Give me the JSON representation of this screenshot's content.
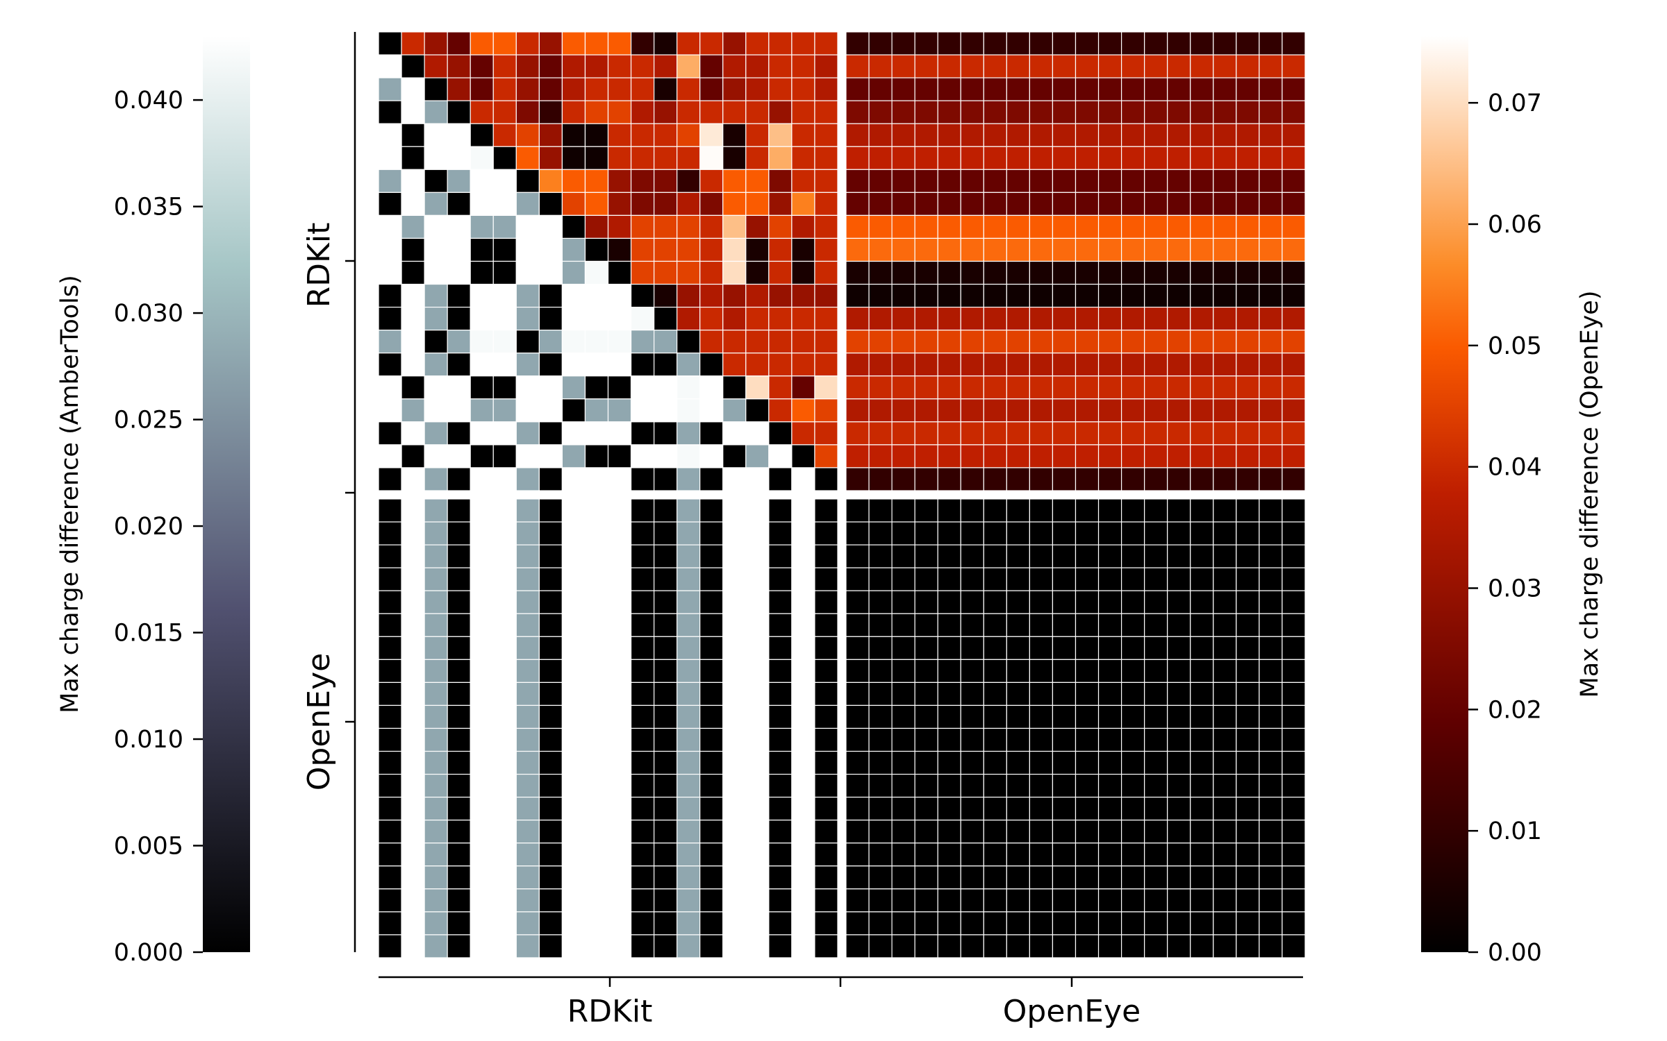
{
  "chart_data": {
    "type": "heatmap",
    "groups": [
      "RDKit",
      "OpenEye"
    ],
    "group_sizes": [
      20,
      20
    ],
    "x_group_labels": [
      "RDKit",
      "OpenEye"
    ],
    "y_group_labels": [
      "RDKit",
      "OpenEye"
    ],
    "left_colorbar": {
      "label": "Max charge difference (AmberTools)",
      "colormap": "bone",
      "range": [
        0.0,
        0.043
      ],
      "ticks": [
        "0.000",
        "0.005",
        "0.010",
        "0.015",
        "0.020",
        "0.025",
        "0.030",
        "0.035",
        "0.040"
      ],
      "tick_values": [
        0.0,
        0.005,
        0.01,
        0.015,
        0.02,
        0.025,
        0.03,
        0.035,
        0.04
      ]
    },
    "right_colorbar": {
      "label": "Max charge difference (OpenEye)",
      "colormap": "gist_heat",
      "range": [
        0.0,
        0.0755
      ],
      "ticks": [
        "0.00",
        "0.01",
        "0.02",
        "0.03",
        "0.04",
        "0.05",
        "0.06",
        "0.07"
      ],
      "tick_values": [
        0.0,
        0.01,
        0.02,
        0.03,
        0.04,
        0.05,
        0.06,
        0.07
      ]
    },
    "lower_triangle_amber": {
      "description_values_rows": [
        [
          0.0,
          0.0005,
          0.02,
          0.0005,
          0.0,
          0.0,
          0.022,
          0.0005,
          0.0,
          0.0,
          0.0,
          0.0,
          0.0,
          0.0,
          0.022,
          0.0,
          0.0,
          0.0,
          0.0,
          0.0
        ],
        [
          0.0,
          0.043,
          0.0,
          0.043,
          0.0,
          0.0,
          0.0,
          0.043,
          0.0,
          0.0,
          0.043,
          0.0,
          0.0,
          0.043,
          0.043,
          0.0,
          0.0,
          0.0,
          0.0,
          0.0
        ]
      ],
      "rdkit_rdkit": [
        [],
        [
          0.043
        ],
        [
          0.028,
          0.043
        ],
        [
          0.0,
          0.043,
          0.028
        ],
        [
          0.043,
          0.0,
          0.043,
          0.043
        ],
        [
          0.043,
          0.0,
          0.043,
          0.043,
          0.042
        ],
        [
          0.028,
          0.043,
          0.0,
          0.028,
          0.043,
          0.043
        ],
        [
          0.0,
          0.043,
          0.028,
          0.0,
          0.043,
          0.043,
          0.028
        ],
        [
          0.043,
          0.028,
          0.043,
          0.043,
          0.028,
          0.028,
          0.043,
          0.043
        ],
        [
          0.043,
          0.0,
          0.043,
          0.043,
          0.0,
          0.0,
          0.043,
          0.043,
          0.028
        ],
        [
          0.043,
          0.0,
          0.043,
          0.043,
          0.0,
          0.0,
          0.043,
          0.043,
          0.028,
          0.042
        ],
        [
          0.0,
          0.043,
          0.028,
          0.0,
          0.043,
          0.043,
          0.028,
          0.0,
          0.043,
          0.043,
          0.043
        ],
        [
          0.0,
          0.043,
          0.028,
          0.0,
          0.043,
          0.043,
          0.028,
          0.0,
          0.043,
          0.043,
          0.043,
          0.042
        ],
        [
          0.028,
          0.043,
          0.0,
          0.028,
          0.042,
          0.042,
          0.0,
          0.028,
          0.042,
          0.042,
          0.042,
          0.028,
          0.028
        ],
        [
          0.0,
          0.043,
          0.028,
          0.0,
          0.043,
          0.043,
          0.028,
          0.0,
          0.043,
          0.043,
          0.043,
          0.0,
          0.0,
          0.028
        ],
        [
          0.043,
          0.0,
          0.043,
          0.043,
          0.0,
          0.0,
          0.043,
          0.043,
          0.028,
          0.0,
          0.0,
          0.043,
          0.043,
          0.042,
          0.043
        ],
        [
          0.043,
          0.028,
          0.043,
          0.043,
          0.028,
          0.028,
          0.043,
          0.043,
          0.0,
          0.028,
          0.028,
          0.043,
          0.043,
          0.042,
          0.043,
          0.028
        ],
        [
          0.0,
          0.043,
          0.028,
          0.0,
          0.043,
          0.043,
          0.028,
          0.0,
          0.043,
          0.043,
          0.043,
          0.0,
          0.0,
          0.028,
          0.0,
          0.043,
          0.043
        ],
        [
          0.043,
          0.0,
          0.043,
          0.043,
          0.0,
          0.0,
          0.043,
          0.043,
          0.028,
          0.0,
          0.0,
          0.043,
          0.043,
          0.042,
          0.043,
          0.0,
          0.028,
          0.043
        ],
        [
          0.0,
          0.043,
          0.028,
          0.0,
          0.043,
          0.043,
          0.028,
          0.0,
          0.043,
          0.043,
          0.043,
          0.0,
          0.0,
          0.028,
          0.0,
          0.043,
          0.043,
          0.0,
          0.043
        ]
      ],
      "openeye_vs_rdkit_columns": [
        0.0,
        0.043,
        0.028,
        0.0,
        0.043,
        0.043,
        0.028,
        0.0,
        0.043,
        0.043,
        0.043,
        0.0,
        0.0,
        0.028,
        0.0,
        0.043,
        0.043,
        0.0,
        0.043,
        0.0
      ]
    },
    "upper_triangle_openeye": {
      "rdkit_rdkit": [
        [
          0.04,
          0.03,
          0.02,
          0.05,
          0.05,
          0.04,
          0.03,
          0.05,
          0.05,
          0.05,
          0.01,
          0.005,
          0.04,
          0.04,
          0.03,
          0.04,
          0.04,
          0.04,
          0.04
        ],
        [
          0.035,
          0.03,
          0.02,
          0.04,
          0.03,
          0.02,
          0.035,
          0.035,
          0.04,
          0.04,
          0.035,
          0.062,
          0.02,
          0.035,
          0.035,
          0.04,
          0.04,
          0.035
        ],
        [
          0.03,
          0.02,
          0.04,
          0.03,
          0.02,
          0.035,
          0.04,
          0.04,
          0.04,
          0.005,
          0.04,
          0.02,
          0.03,
          0.035,
          0.04,
          0.04,
          0.035
        ],
        [
          0.04,
          0.04,
          0.025,
          0.01,
          0.04,
          0.045,
          0.045,
          0.035,
          0.03,
          0.04,
          0.04,
          0.04,
          0.04,
          0.03,
          0.04,
          0.04
        ],
        [
          0.04,
          0.045,
          0.03,
          0.003,
          0.003,
          0.04,
          0.04,
          0.04,
          0.045,
          0.072,
          0.005,
          0.04,
          0.065,
          0.04,
          0.04
        ],
        [
          0.05,
          0.03,
          0.003,
          0.003,
          0.04,
          0.04,
          0.04,
          0.04,
          0.075,
          0.005,
          0.04,
          0.062,
          0.04,
          0.04
        ],
        [
          0.055,
          0.05,
          0.05,
          0.03,
          0.025,
          0.025,
          0.01,
          0.04,
          0.05,
          0.05,
          0.025,
          0.04,
          0.04
        ],
        [
          0.045,
          0.05,
          0.03,
          0.025,
          0.025,
          0.035,
          0.025,
          0.05,
          0.05,
          0.03,
          0.055,
          0.04
        ],
        [
          0.03,
          0.035,
          0.045,
          0.045,
          0.045,
          0.04,
          0.065,
          0.03,
          0.045,
          0.035,
          0.04
        ],
        [
          0.005,
          0.045,
          0.045,
          0.045,
          0.04,
          0.07,
          0.005,
          0.04,
          0.005,
          0.04
        ],
        [
          0.045,
          0.045,
          0.045,
          0.04,
          0.07,
          0.005,
          0.04,
          0.005,
          0.04
        ],
        [
          0.005,
          0.03,
          0.035,
          0.03,
          0.035,
          0.03,
          0.03,
          0.03
        ],
        [
          0.035,
          0.04,
          0.035,
          0.04,
          0.04,
          0.04,
          0.04
        ],
        [
          0.04,
          0.04,
          0.04,
          0.04,
          0.04,
          0.04
        ],
        [
          0.04,
          0.04,
          0.04,
          0.04,
          0.04
        ],
        [
          0.07,
          0.04,
          0.02,
          0.07
        ],
        [
          0.04,
          0.05,
          0.045
        ],
        [
          0.04,
          0.04
        ],
        [
          0.045
        ]
      ],
      "openeye_row_values_per_rdkit_row": [
        0.01,
        0.04,
        0.02,
        0.025,
        0.035,
        0.038,
        0.02,
        0.02,
        0.05,
        0.052,
        0.005,
        0.003,
        0.035,
        0.045,
        0.035,
        0.04,
        0.035,
        0.04,
        0.038,
        0.01
      ],
      "openeye_openeye": 0.0
    }
  }
}
